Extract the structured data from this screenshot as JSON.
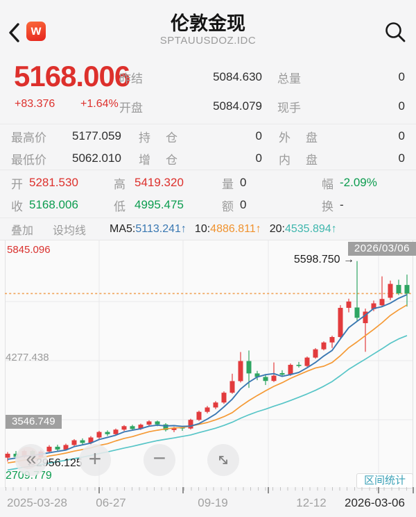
{
  "header": {
    "title": "伦敦金现",
    "subtitle": "SPTAUUSDOZ.IDC",
    "logo_letter": "w"
  },
  "quote": {
    "last": "5168.006",
    "change": "+83.376",
    "change_pct": "+1.64%"
  },
  "info_grid": {
    "rows": [
      {
        "l1": "昨结",
        "v1": "5084.630",
        "l2": "总量",
        "v2": "0"
      },
      {
        "l1": "开盘",
        "v1": "5084.079",
        "l2": "现手",
        "v2": "0"
      }
    ]
  },
  "detail_grid": {
    "rows": [
      {
        "l1": "最高价",
        "v1": "5177.059",
        "l2a": "持",
        "l2b": "仓",
        "v2": "0",
        "l3a": "外",
        "l3b": "盘",
        "v3": "0"
      },
      {
        "l1": "最低价",
        "v1": "5062.010",
        "l2a": "增",
        "l2b": "仓",
        "v2": "0",
        "l3a": "内",
        "l3b": "盘",
        "v3": "0"
      }
    ]
  },
  "ohlc_grid": {
    "rows": [
      {
        "l1": "开",
        "v1": "5281.530",
        "l2": "高",
        "v2": "5419.320",
        "l3": "量",
        "v3": "0",
        "l4": "幅",
        "v4": "-2.09%"
      },
      {
        "l1": "收",
        "v1": "5168.006",
        "l2": "低",
        "v2": "4995.475",
        "l3": "额",
        "v3": "0",
        "l4": "换",
        "v4": "-"
      }
    ]
  },
  "ma_bar": {
    "overlay": "叠加",
    "set_ma": "设均线",
    "items": [
      {
        "label": "MA5:",
        "value": "5113.241",
        "arrow": "↑"
      },
      {
        "label": "10:",
        "value": "4886.811",
        "arrow": "↑"
      },
      {
        "label": "20:",
        "value": "4535.894",
        "arrow": "↑"
      }
    ]
  },
  "chart": {
    "y_top": "5845.096",
    "y_mid": "4277.438",
    "y_badge": "3546.749",
    "y_bottom": "2709.779",
    "date_badge": "2026/03/06",
    "max_annotation": "5598.750",
    "max_arrow": "→",
    "min_arrow": "←",
    "min_annotation": "2956.125",
    "range_button": "区间统计",
    "controls": {
      "rewind": "«",
      "zoom_in": "+",
      "zoom_out": "−",
      "expand_icon": "diagonal-resize"
    }
  },
  "x_axis": {
    "labels": [
      "2025-03-28",
      "06-27",
      "09-19",
      "12-12",
      "2026-03-06"
    ]
  },
  "chart_data": {
    "type": "candlestick",
    "period": "weekly",
    "title": "伦敦金现 SPTAUUSDOZ.IDC",
    "x_tick_labels": [
      "2025-03-28",
      "06-27",
      "09-19",
      "12-12",
      "2026-03-06"
    ],
    "y_axis": {
      "top": 5845.096,
      "mid": 4277.438,
      "bottom": 2709.779
    },
    "last_price_line": 5168.006,
    "max_point": 5598.75,
    "min_point": 2956.125,
    "ma_display": {
      "ma5": 5113.241,
      "ma10": 4886.811,
      "ma20": 4535.894
    },
    "colors": {
      "up": "#e23b3d",
      "down": "#2ea562",
      "ma5": "#3a78b2",
      "ma10": "#f59a35",
      "ma20": "#57c5c7",
      "price_line": "#f0a257",
      "grid": "#e8e8e9"
    },
    "ma_seed": [
      2636,
      2654,
      2672,
      2690,
      2708,
      2726,
      2744,
      2762,
      2780,
      2798,
      2816,
      2834,
      2852,
      2870,
      2888,
      2906,
      2924,
      2942,
      2960,
      2978
    ],
    "candles": [
      [
        2990,
        3065,
        2938,
        3042
      ],
      [
        3042,
        3078,
        2972,
        3001
      ],
      [
        3001,
        3096,
        2984,
        3078
      ],
      [
        3078,
        3092,
        2956.125,
        2988
      ],
      [
        2988,
        3092,
        2966,
        3072
      ],
      [
        3072,
        3156,
        3048,
        3135
      ],
      [
        3135,
        3162,
        3076,
        3098
      ],
      [
        3098,
        3176,
        3084,
        3158
      ],
      [
        3158,
        3236,
        3138,
        3221
      ],
      [
        3221,
        3246,
        3158,
        3186
      ],
      [
        3186,
        3276,
        3168,
        3258
      ],
      [
        3258,
        3346,
        3238,
        3331
      ],
      [
        3331,
        3352,
        3278,
        3302
      ],
      [
        3302,
        3376,
        3288,
        3362
      ],
      [
        3362,
        3422,
        3344,
        3408
      ],
      [
        3408,
        3426,
        3352,
        3371
      ],
      [
        3371,
        3442,
        3358,
        3428
      ],
      [
        3428,
        3486,
        3414,
        3471
      ],
      [
        3471,
        3482,
        3408,
        3431
      ],
      [
        3431,
        3448,
        3338,
        3357
      ],
      [
        3357,
        3399,
        3328,
        3388
      ],
      [
        3388,
        3404,
        3346,
        3377
      ],
      [
        3377,
        3506,
        3364,
        3492
      ],
      [
        3492,
        3614,
        3478,
        3598
      ],
      [
        3598,
        3676,
        3578,
        3656
      ],
      [
        3656,
        3740,
        3634,
        3722
      ],
      [
        3722,
        3870,
        3704,
        3852
      ],
      [
        3852,
        4104,
        3838,
        4006
      ],
      [
        4006,
        4392,
        3988,
        4272
      ],
      [
        4272,
        4412,
        3916,
        4108
      ],
      [
        4108,
        4142,
        4018,
        4061
      ],
      [
        4061,
        4088,
        3954,
        4008
      ],
      [
        4008,
        4254,
        3994,
        4078
      ],
      [
        4112,
        4150,
        4070,
        4091
      ],
      [
        4091,
        4240,
        4076,
        4222
      ],
      [
        4222,
        4260,
        4186,
        4207
      ],
      [
        4207,
        4332,
        4194,
        4318
      ],
      [
        4318,
        4444,
        4304,
        4428
      ],
      [
        4428,
        4534,
        4414,
        4519
      ],
      [
        4519,
        4608,
        4446,
        4591
      ],
      [
        4591,
        5014,
        4574,
        4978
      ],
      [
        4978,
        5100,
        4918,
        5062
      ],
      [
        4983,
        5598.75,
        4806,
        4846
      ],
      [
        4775,
        4968,
        4395,
        4928
      ],
      [
        4962,
        5075,
        4935,
        5038
      ],
      [
        5012,
        5396,
        4988,
        5096
      ],
      [
        5112,
        5340,
        5080,
        5296
      ],
      [
        5282,
        5352,
        5148,
        5171
      ],
      [
        5281.53,
        5419.32,
        4995.475,
        5168.006
      ]
    ]
  }
}
